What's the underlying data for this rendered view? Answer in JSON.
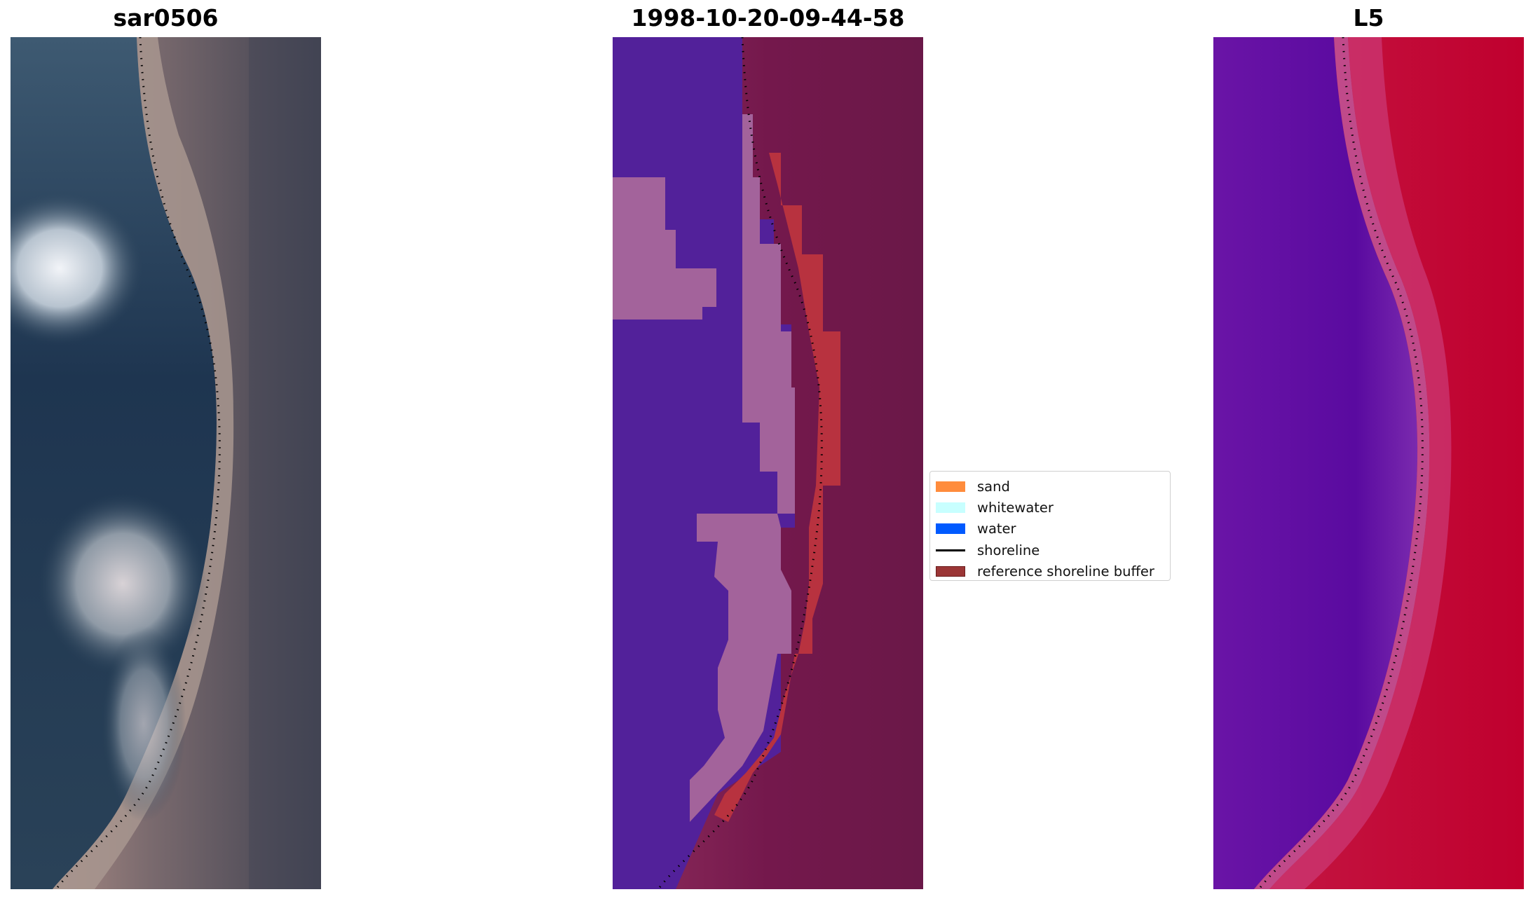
{
  "panels": [
    {
      "id": "rgb",
      "title": "sar0506"
    },
    {
      "id": "classified",
      "title": "1998-10-20-09-44-58"
    },
    {
      "id": "index",
      "title": "L5"
    }
  ],
  "legend": [
    {
      "label": "sand",
      "color": "#ff8c3c",
      "kind": "patch"
    },
    {
      "label": "whitewater",
      "color": "#c8ffff",
      "kind": "patch"
    },
    {
      "label": "water",
      "color": "#005aff",
      "kind": "patch"
    },
    {
      "label": "shoreline",
      "color": "#000000",
      "kind": "line"
    },
    {
      "label": "reference shoreline buffer",
      "color": "#9b3636",
      "kind": "patch"
    }
  ],
  "colors": {
    "water_class": "#52219a",
    "whitewater_class": "#a3639b",
    "buffer": "#b8323f",
    "land_dark": "#6a1848",
    "index_low": "#5a0aa0",
    "index_high": "#c0002e"
  }
}
